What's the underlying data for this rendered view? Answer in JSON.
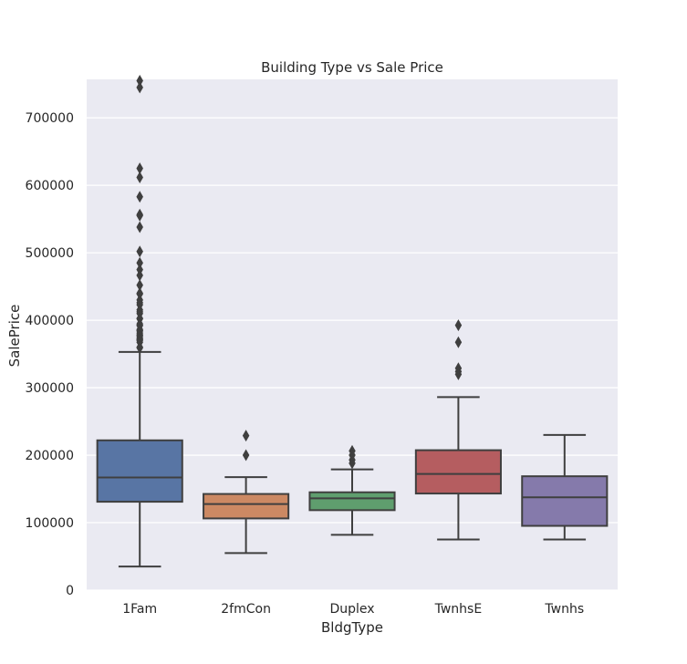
{
  "chart_data": {
    "type": "box",
    "title": "Building Type vs Sale Price",
    "xlabel": "BldgType",
    "ylabel": "SalePrice",
    "ylim": [
      0,
      755000
    ],
    "yticks": [
      0,
      100000,
      200000,
      300000,
      400000,
      500000,
      600000,
      700000
    ],
    "grid": true,
    "categories": [
      "1Fam",
      "2fmCon",
      "Duplex",
      "TwnhsE",
      "Twnhs"
    ],
    "colors": [
      "#5875a4",
      "#cc8963",
      "#5f9e6e",
      "#b55d60",
      "#857aab"
    ],
    "series": [
      {
        "category": "1Fam",
        "min": 34900,
        "q1": 131000,
        "median": 167000,
        "q3": 222000,
        "max": 353000,
        "outliers": [
          755000,
          745000,
          625000,
          611657,
          582933,
          556581,
          555000,
          538000,
          501837,
          485000,
          475000,
          466500,
          451950,
          440000,
          438780,
          430000,
          426000,
          423000,
          415298,
          412500,
          410000,
          402861,
          402000,
          394617,
          392500,
          392000,
          386250,
          385000,
          383970,
          381000,
          378500,
          377500,
          377426,
          375000,
          372500,
          372402,
          370878,
          369900,
          367294,
          360000,
          359100
        ]
      },
      {
        "category": "2fmCon",
        "min": 55000,
        "q1": 106250,
        "median": 127500,
        "q3": 142500,
        "max": 167500,
        "outliers": [
          228950,
          200000
        ]
      },
      {
        "category": "Duplex",
        "min": 82000,
        "q1": 118500,
        "median": 135980,
        "q3": 145000,
        "max": 179000,
        "outliers": [
          206300,
          200000,
          193000,
          188000
        ]
      },
      {
        "category": "TwnhsE",
        "min": 75000,
        "q1": 143187,
        "median": 172200,
        "q3": 207375,
        "max": 286000,
        "outliers": [
          392500,
          367294,
          328900,
          324000,
          319900
        ]
      },
      {
        "category": "Twnhs",
        "min": 75000,
        "q1": 95250,
        "median": 137500,
        "q3": 168750,
        "max": 230000,
        "outliers": []
      }
    ]
  }
}
